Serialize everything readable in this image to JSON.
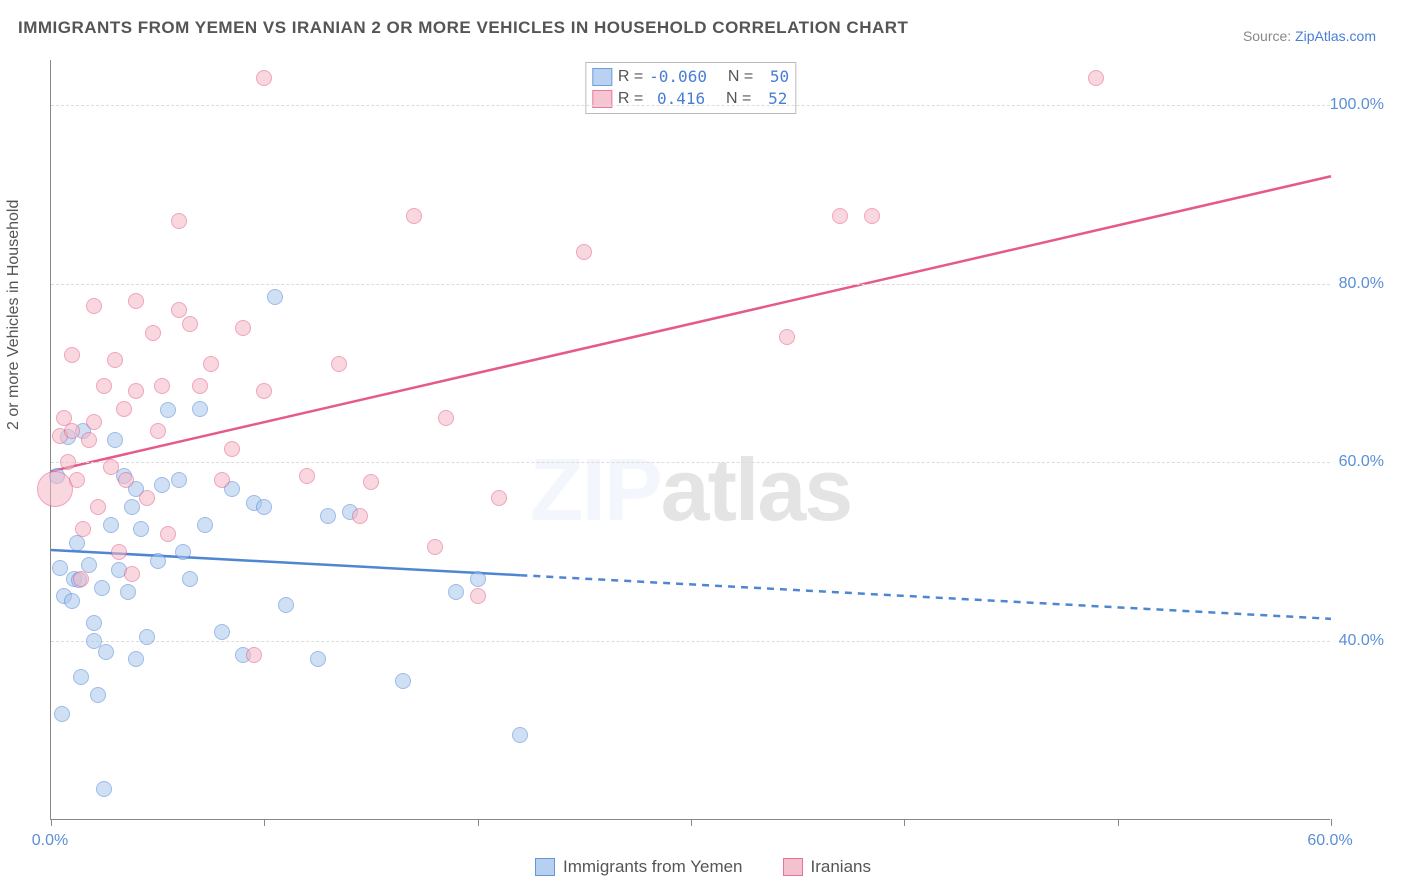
{
  "title": "IMMIGRANTS FROM YEMEN VS IRANIAN 2 OR MORE VEHICLES IN HOUSEHOLD CORRELATION CHART",
  "source_prefix": "Source: ",
  "source_name": "ZipAtlas.com",
  "ylabel": "2 or more Vehicles in Household",
  "watermark_a": "ZIP",
  "watermark_b": "atlas",
  "chart": {
    "type": "scatter",
    "xlim": [
      0,
      60
    ],
    "ylim": [
      20,
      105
    ],
    "xtick_step": 10,
    "xtick_labels": {
      "0": "0.0%",
      "60": "60.0%"
    },
    "ytick_values": [
      40,
      60,
      80,
      100
    ],
    "ytick_labels": [
      "40.0%",
      "60.0%",
      "80.0%",
      "100.0%"
    ],
    "grid_color": "#dcdcdc",
    "axis_color": "#888888",
    "label_color": "#555555",
    "tick_label_color": "#5a8fd6",
    "background_color": "#ffffff",
    "title_fontsize": 17,
    "label_fontsize": 16,
    "point_radius": 8
  },
  "series": [
    {
      "name": "Immigrants from Yemen",
      "fill": "#a9c8ee",
      "stroke": "#4e86d2",
      "fill_opacity": 0.55,
      "r_label": "R =",
      "r_value": "-0.060",
      "n_label": "N =",
      "n_value": "50",
      "trend": {
        "x1": 0,
        "y1": 50.2,
        "x2": 60,
        "y2": 42.5,
        "solid_until_x": 22,
        "width": 2.5
      },
      "points": [
        [
          0.3,
          58.5
        ],
        [
          0.4,
          48.2
        ],
        [
          0.5,
          31.8
        ],
        [
          0.6,
          45.0
        ],
        [
          0.8,
          62.8
        ],
        [
          1.0,
          44.5
        ],
        [
          1.1,
          47.0
        ],
        [
          1.2,
          51.0
        ],
        [
          1.3,
          46.8
        ],
        [
          1.4,
          36.0
        ],
        [
          1.5,
          63.5
        ],
        [
          1.8,
          48.5
        ],
        [
          2.0,
          40.0
        ],
        [
          2.0,
          42.0
        ],
        [
          2.2,
          34.0
        ],
        [
          2.4,
          46.0
        ],
        [
          2.5,
          23.5
        ],
        [
          2.6,
          38.8
        ],
        [
          2.8,
          53.0
        ],
        [
          3.0,
          62.5
        ],
        [
          3.2,
          48.0
        ],
        [
          3.4,
          58.5
        ],
        [
          3.6,
          45.5
        ],
        [
          3.8,
          55.0
        ],
        [
          4.0,
          38.0
        ],
        [
          4.0,
          57.0
        ],
        [
          4.2,
          52.5
        ],
        [
          4.5,
          40.5
        ],
        [
          5.0,
          49.0
        ],
        [
          5.2,
          57.5
        ],
        [
          5.5,
          65.8
        ],
        [
          6.0,
          58.0
        ],
        [
          6.2,
          50.0
        ],
        [
          6.5,
          47.0
        ],
        [
          7.0,
          66.0
        ],
        [
          7.2,
          53.0
        ],
        [
          8.0,
          41.0
        ],
        [
          8.5,
          57.0
        ],
        [
          9.0,
          38.5
        ],
        [
          9.5,
          55.5
        ],
        [
          10.0,
          55.0
        ],
        [
          10.5,
          78.5
        ],
        [
          11.0,
          44.0
        ],
        [
          12.5,
          38.0
        ],
        [
          13.0,
          54.0
        ],
        [
          14.0,
          54.5
        ],
        [
          16.5,
          35.5
        ],
        [
          19.0,
          45.5
        ],
        [
          20.0,
          47.0
        ],
        [
          22.0,
          29.5
        ]
      ]
    },
    {
      "name": "Iranians",
      "fill": "#f3b7c6",
      "stroke": "#e55a87",
      "fill_opacity": 0.55,
      "r_label": "R =",
      "r_value": "0.416",
      "n_label": "N =",
      "n_value": "52",
      "trend": {
        "x1": 0,
        "y1": 59.0,
        "x2": 60,
        "y2": 92.0,
        "solid_until_x": 60,
        "width": 2.5
      },
      "points": [
        [
          0.2,
          57.0,
          18
        ],
        [
          0.4,
          63.0
        ],
        [
          0.6,
          65.0
        ],
        [
          0.8,
          60.0
        ],
        [
          1.0,
          63.5
        ],
        [
          1.0,
          72.0
        ],
        [
          1.2,
          58.0
        ],
        [
          1.4,
          47.0
        ],
        [
          1.5,
          52.5
        ],
        [
          1.8,
          62.5
        ],
        [
          2.0,
          64.5
        ],
        [
          2.0,
          77.5
        ],
        [
          2.2,
          55.0
        ],
        [
          2.5,
          68.5
        ],
        [
          2.8,
          59.5
        ],
        [
          3.0,
          71.5
        ],
        [
          3.2,
          50.0
        ],
        [
          3.4,
          66.0
        ],
        [
          3.5,
          58.0
        ],
        [
          3.8,
          47.5
        ],
        [
          4.0,
          68.0
        ],
        [
          4.0,
          78.0
        ],
        [
          4.5,
          56.0
        ],
        [
          4.8,
          74.5
        ],
        [
          5.0,
          63.5
        ],
        [
          5.2,
          68.5
        ],
        [
          5.5,
          52.0
        ],
        [
          6.0,
          77.0
        ],
        [
          6.0,
          87.0
        ],
        [
          6.5,
          75.5
        ],
        [
          7.0,
          68.5
        ],
        [
          7.5,
          71.0
        ],
        [
          8.0,
          58.0
        ],
        [
          8.5,
          61.5
        ],
        [
          9.0,
          75.0
        ],
        [
          9.5,
          38.5
        ],
        [
          10.0,
          68.0
        ],
        [
          10.0,
          103.0
        ],
        [
          12.0,
          58.5
        ],
        [
          13.5,
          71.0
        ],
        [
          14.5,
          54.0
        ],
        [
          15.0,
          57.8
        ],
        [
          17.0,
          87.5
        ],
        [
          18.0,
          50.5
        ],
        [
          18.5,
          65.0
        ],
        [
          20.0,
          45.0
        ],
        [
          21.0,
          56.0
        ],
        [
          25.0,
          83.5
        ],
        [
          34.5,
          74.0
        ],
        [
          37.0,
          87.5
        ],
        [
          38.5,
          87.5
        ],
        [
          49.0,
          103.0
        ]
      ]
    }
  ],
  "bottom_legend": [
    {
      "label": "Immigrants from Yemen",
      "fill": "#a9c8ee",
      "stroke": "#4e86d2"
    },
    {
      "label": "Iranians",
      "fill": "#f3b7c6",
      "stroke": "#e55a87"
    }
  ]
}
